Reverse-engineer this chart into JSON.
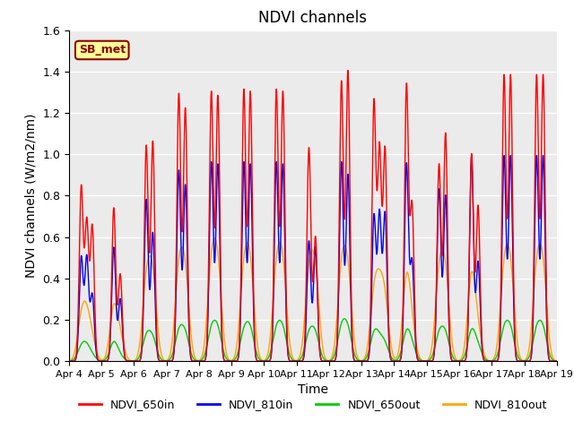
{
  "title": "NDVI channels",
  "xlabel": "Time",
  "ylabel": "NDVI channels (W/m2/nm)",
  "ylim": [
    0,
    1.6
  ],
  "annotation_text": "SB_met",
  "annotation_bg": "#FFFF99",
  "annotation_edgecolor": "#8B0000",
  "colors": {
    "NDVI_650in": "#FF0000",
    "NDVI_810in": "#0000EE",
    "NDVI_650out": "#00CC00",
    "NDVI_810out": "#FFA500"
  },
  "labels": [
    "NDVI_650in",
    "NDVI_810in",
    "NDVI_650out",
    "NDVI_810out"
  ],
  "xtick_positions": [
    4,
    5,
    6,
    7,
    8,
    9,
    10,
    11,
    12,
    13,
    14,
    15,
    16,
    17,
    18,
    19
  ],
  "xtick_labels": [
    "Apr 4",
    "Apr 5",
    "Apr 6",
    "Apr 7",
    "Apr 8",
    "Apr 9",
    "Apr 10",
    "Apr 11",
    "Apr 12",
    "Apr 13",
    "Apr 14",
    "Apr 15",
    "Apr 16",
    "Apr 17",
    "Apr 18",
    "Apr 19"
  ],
  "ytick_positions": [
    0.0,
    0.2,
    0.4,
    0.6,
    0.8,
    1.0,
    1.2,
    1.4,
    1.6
  ],
  "bg_color": "#EBEBEB",
  "grid_color": "#FFFFFF",
  "line_width": 1.0,
  "sigma_in": 0.06,
  "sigma_out": 0.12,
  "day_centers": [
    4.38,
    4.55,
    4.72,
    5.38,
    5.58,
    6.38,
    6.58,
    7.38,
    7.58,
    8.38,
    8.58,
    9.38,
    9.58,
    10.38,
    10.58,
    11.38,
    11.58,
    12.38,
    12.58,
    13.38,
    13.55,
    13.72,
    14.38,
    14.55,
    15.38,
    15.58,
    16.38,
    16.58,
    17.38,
    17.58,
    18.38,
    18.58
  ],
  "peaks_650in": [
    0.84,
    0.67,
    0.65,
    0.74,
    0.42,
    1.04,
    1.06,
    1.29,
    1.22,
    1.3,
    1.28,
    1.31,
    1.3,
    1.31,
    1.3,
    1.03,
    0.6,
    1.35,
    1.4,
    1.25,
    1.02,
    1.02,
    1.33,
    0.75,
    0.95,
    1.1,
    1.0,
    0.75,
    1.38,
    1.38,
    1.38,
    1.38
  ],
  "peaks_810in": [
    0.5,
    0.5,
    0.32,
    0.55,
    0.3,
    0.78,
    0.62,
    0.92,
    0.85,
    0.96,
    0.95,
    0.96,
    0.95,
    0.96,
    0.95,
    0.58,
    0.55,
    0.96,
    0.9,
    0.7,
    0.71,
    0.71,
    0.95,
    0.48,
    0.83,
    0.8,
    0.99,
    0.48,
    0.99,
    0.99,
    0.99,
    0.99
  ],
  "peaks_650out": [
    0.06,
    0.06,
    0.02,
    0.09,
    0.02,
    0.11,
    0.1,
    0.13,
    0.12,
    0.14,
    0.14,
    0.13,
    0.14,
    0.14,
    0.14,
    0.12,
    0.12,
    0.15,
    0.14,
    0.12,
    0.07,
    0.07,
    0.13,
    0.06,
    0.12,
    0.12,
    0.14,
    0.06,
    0.14,
    0.14,
    0.14,
    0.14
  ],
  "peaks_810out": [
    0.18,
    0.18,
    0.08,
    0.25,
    0.1,
    0.35,
    0.37,
    0.4,
    0.38,
    0.42,
    0.42,
    0.4,
    0.41,
    0.4,
    0.41,
    0.38,
    0.38,
    0.4,
    0.39,
    0.28,
    0.25,
    0.25,
    0.38,
    0.12,
    0.38,
    0.38,
    0.4,
    0.12,
    0.4,
    0.4,
    0.4,
    0.4
  ]
}
